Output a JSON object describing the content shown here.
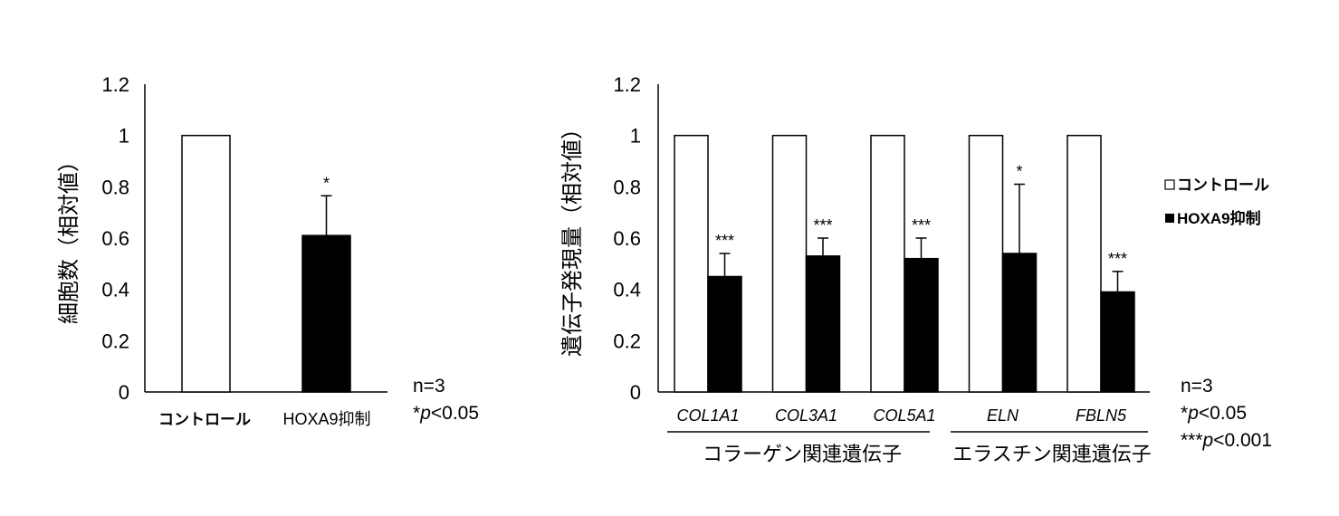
{
  "chart_data": [
    {
      "type": "bar",
      "ylabel": "細胞数（相対値）",
      "ylim": [
        0,
        1.2
      ],
      "yticks": [
        "0",
        "0.2",
        "0.4",
        "0.6",
        "0.8",
        "1",
        "1.2"
      ],
      "categories": [
        "コントロール",
        "HOXA9抑制"
      ],
      "values": [
        1.0,
        0.61
      ],
      "errors": [
        0,
        0.155
      ],
      "fill_colors": [
        "#ffffff",
        "#000000"
      ],
      "significance": [
        "",
        "*"
      ],
      "notes": [
        "n=3",
        "*",
        "p",
        "<0.05"
      ]
    },
    {
      "type": "bar",
      "ylabel": "遺伝子発現量（相対値）",
      "ylim": [
        0,
        1.2
      ],
      "yticks": [
        "0",
        "0.2",
        "0.4",
        "0.6",
        "0.8",
        "1",
        "1.2"
      ],
      "categories": [
        "COL1A1",
        "COL3A1",
        "COL5A1",
        "ELN",
        "FBLN5"
      ],
      "groups": [
        {
          "label": "コラーゲン関連遺伝子",
          "members": [
            "COL1A1",
            "COL3A1",
            "COL5A1"
          ]
        },
        {
          "label": "エラスチン関連遺伝子",
          "members": [
            "ELN",
            "FBLN5"
          ]
        }
      ],
      "series": [
        {
          "name": "コントロール",
          "color": "#ffffff",
          "values": [
            1,
            1,
            1,
            1,
            1
          ]
        },
        {
          "name": "HOXA9抑制",
          "color": "#000000",
          "values": [
            0.45,
            0.53,
            0.52,
            0.54,
            0.39
          ],
          "errors": [
            0.09,
            0.07,
            0.08,
            0.27,
            0.08
          ],
          "significance": [
            "***",
            "***",
            "***",
            "*",
            "***"
          ]
        }
      ],
      "legend_position": "right",
      "notes": [
        "n=3",
        "*",
        "p",
        "<0.05",
        "***",
        "p",
        "<0.001"
      ]
    }
  ]
}
